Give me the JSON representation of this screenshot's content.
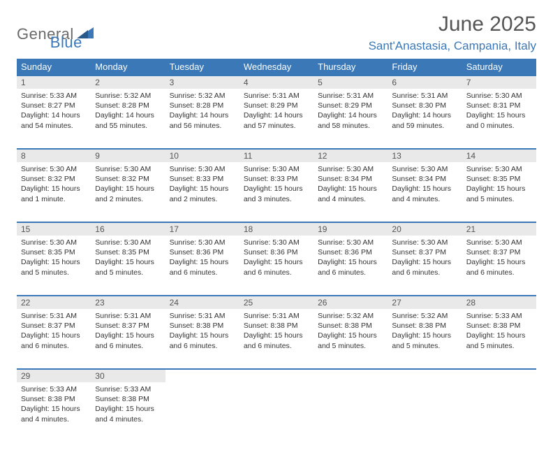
{
  "brand": {
    "word1": "General",
    "word2": "Blue"
  },
  "title": "June 2025",
  "location": "Sant'Anastasia, Campania, Italy",
  "colors": {
    "header_bg": "#3a78b8",
    "header_text": "#ffffff",
    "daynum_bg": "#e9e9e9",
    "border": "#3a78b8",
    "body_text": "#333333",
    "title_text": "#555555",
    "logo_gray": "#6a6a6a",
    "logo_blue": "#3a78b8",
    "page_bg": "#ffffff"
  },
  "weekdays": [
    "Sunday",
    "Monday",
    "Tuesday",
    "Wednesday",
    "Thursday",
    "Friday",
    "Saturday"
  ],
  "weeks": [
    [
      {
        "n": "1",
        "sr": "5:33 AM",
        "ss": "8:27 PM",
        "dl": "14 hours and 54 minutes."
      },
      {
        "n": "2",
        "sr": "5:32 AM",
        "ss": "8:28 PM",
        "dl": "14 hours and 55 minutes."
      },
      {
        "n": "3",
        "sr": "5:32 AM",
        "ss": "8:28 PM",
        "dl": "14 hours and 56 minutes."
      },
      {
        "n": "4",
        "sr": "5:31 AM",
        "ss": "8:29 PM",
        "dl": "14 hours and 57 minutes."
      },
      {
        "n": "5",
        "sr": "5:31 AM",
        "ss": "8:29 PM",
        "dl": "14 hours and 58 minutes."
      },
      {
        "n": "6",
        "sr": "5:31 AM",
        "ss": "8:30 PM",
        "dl": "14 hours and 59 minutes."
      },
      {
        "n": "7",
        "sr": "5:30 AM",
        "ss": "8:31 PM",
        "dl": "15 hours and 0 minutes."
      }
    ],
    [
      {
        "n": "8",
        "sr": "5:30 AM",
        "ss": "8:32 PM",
        "dl": "15 hours and 1 minute."
      },
      {
        "n": "9",
        "sr": "5:30 AM",
        "ss": "8:32 PM",
        "dl": "15 hours and 2 minutes."
      },
      {
        "n": "10",
        "sr": "5:30 AM",
        "ss": "8:33 PM",
        "dl": "15 hours and 2 minutes."
      },
      {
        "n": "11",
        "sr": "5:30 AM",
        "ss": "8:33 PM",
        "dl": "15 hours and 3 minutes."
      },
      {
        "n": "12",
        "sr": "5:30 AM",
        "ss": "8:34 PM",
        "dl": "15 hours and 4 minutes."
      },
      {
        "n": "13",
        "sr": "5:30 AM",
        "ss": "8:34 PM",
        "dl": "15 hours and 4 minutes."
      },
      {
        "n": "14",
        "sr": "5:30 AM",
        "ss": "8:35 PM",
        "dl": "15 hours and 5 minutes."
      }
    ],
    [
      {
        "n": "15",
        "sr": "5:30 AM",
        "ss": "8:35 PM",
        "dl": "15 hours and 5 minutes."
      },
      {
        "n": "16",
        "sr": "5:30 AM",
        "ss": "8:35 PM",
        "dl": "15 hours and 5 minutes."
      },
      {
        "n": "17",
        "sr": "5:30 AM",
        "ss": "8:36 PM",
        "dl": "15 hours and 6 minutes."
      },
      {
        "n": "18",
        "sr": "5:30 AM",
        "ss": "8:36 PM",
        "dl": "15 hours and 6 minutes."
      },
      {
        "n": "19",
        "sr": "5:30 AM",
        "ss": "8:36 PM",
        "dl": "15 hours and 6 minutes."
      },
      {
        "n": "20",
        "sr": "5:30 AM",
        "ss": "8:37 PM",
        "dl": "15 hours and 6 minutes."
      },
      {
        "n": "21",
        "sr": "5:30 AM",
        "ss": "8:37 PM",
        "dl": "15 hours and 6 minutes."
      }
    ],
    [
      {
        "n": "22",
        "sr": "5:31 AM",
        "ss": "8:37 PM",
        "dl": "15 hours and 6 minutes."
      },
      {
        "n": "23",
        "sr": "5:31 AM",
        "ss": "8:37 PM",
        "dl": "15 hours and 6 minutes."
      },
      {
        "n": "24",
        "sr": "5:31 AM",
        "ss": "8:38 PM",
        "dl": "15 hours and 6 minutes."
      },
      {
        "n": "25",
        "sr": "5:31 AM",
        "ss": "8:38 PM",
        "dl": "15 hours and 6 minutes."
      },
      {
        "n": "26",
        "sr": "5:32 AM",
        "ss": "8:38 PM",
        "dl": "15 hours and 5 minutes."
      },
      {
        "n": "27",
        "sr": "5:32 AM",
        "ss": "8:38 PM",
        "dl": "15 hours and 5 minutes."
      },
      {
        "n": "28",
        "sr": "5:33 AM",
        "ss": "8:38 PM",
        "dl": "15 hours and 5 minutes."
      }
    ],
    [
      {
        "n": "29",
        "sr": "5:33 AM",
        "ss": "8:38 PM",
        "dl": "15 hours and 4 minutes."
      },
      {
        "n": "30",
        "sr": "5:33 AM",
        "ss": "8:38 PM",
        "dl": "15 hours and 4 minutes."
      },
      null,
      null,
      null,
      null,
      null
    ]
  ],
  "labels": {
    "sunrise": "Sunrise:",
    "sunset": "Sunset:",
    "daylight": "Daylight:"
  }
}
